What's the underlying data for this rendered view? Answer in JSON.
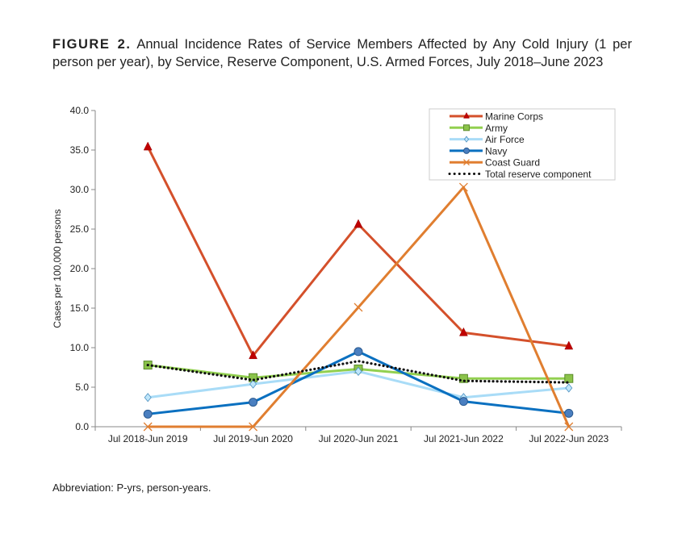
{
  "figure": {
    "label": "FIGURE 2.",
    "title": "Annual Incidence Rates of Service Members Affected by Any Cold Injury (1 per person per year), by Service, Reserve Component, U.S. Armed Forces, July 2018–June 2023",
    "footnote": "Abbreviation: P-yrs, person-years."
  },
  "chart_data": {
    "type": "line",
    "title": "",
    "xlabel": "",
    "ylabel": "Cases per 100,000 persons",
    "ylim": [
      0,
      40
    ],
    "yticks": [
      "0.0",
      "5.0",
      "10.0",
      "15.0",
      "20.0",
      "25.0",
      "30.0",
      "35.0",
      "40.0"
    ],
    "grid": false,
    "legend_position": "top-right",
    "categories": [
      "Jul 2018-Jun 2019",
      "Jul 2019-Jun 2020",
      "Jul 2020-Jun 2021",
      "Jul 2021-Jun 2022",
      "Jul 2022-Jun 2023"
    ],
    "series": [
      {
        "name": "Marine Corps",
        "color": "#d4502b",
        "marker": "triangle",
        "marker_color": "#c00000",
        "values": [
          35.4,
          9.0,
          25.6,
          11.9,
          10.2
        ]
      },
      {
        "name": "Army",
        "color": "#92d050",
        "marker": "square",
        "marker_color": "#8bc34a",
        "values": [
          7.8,
          6.2,
          7.3,
          6.1,
          6.1
        ]
      },
      {
        "name": "Air Force",
        "color": "#a9dcf7",
        "marker": "diamond",
        "marker_color": "#bfe6fa",
        "values": [
          3.7,
          5.4,
          7.0,
          3.7,
          4.9
        ]
      },
      {
        "name": "Navy",
        "color": "#0a70c0",
        "marker": "circle",
        "marker_color": "#4a7fc0",
        "values": [
          1.6,
          3.1,
          9.5,
          3.2,
          1.7
        ]
      },
      {
        "name": "Coast Guard",
        "color": "#e07e30",
        "marker": "x",
        "marker_color": "#e07e30",
        "values": [
          0,
          0,
          15.1,
          30.3,
          0
        ]
      },
      {
        "name": "Total reserve component",
        "color": "#111111",
        "marker": "none",
        "dashed": "dotted",
        "values": [
          7.8,
          5.9,
          8.3,
          5.8,
          5.6
        ]
      }
    ]
  }
}
